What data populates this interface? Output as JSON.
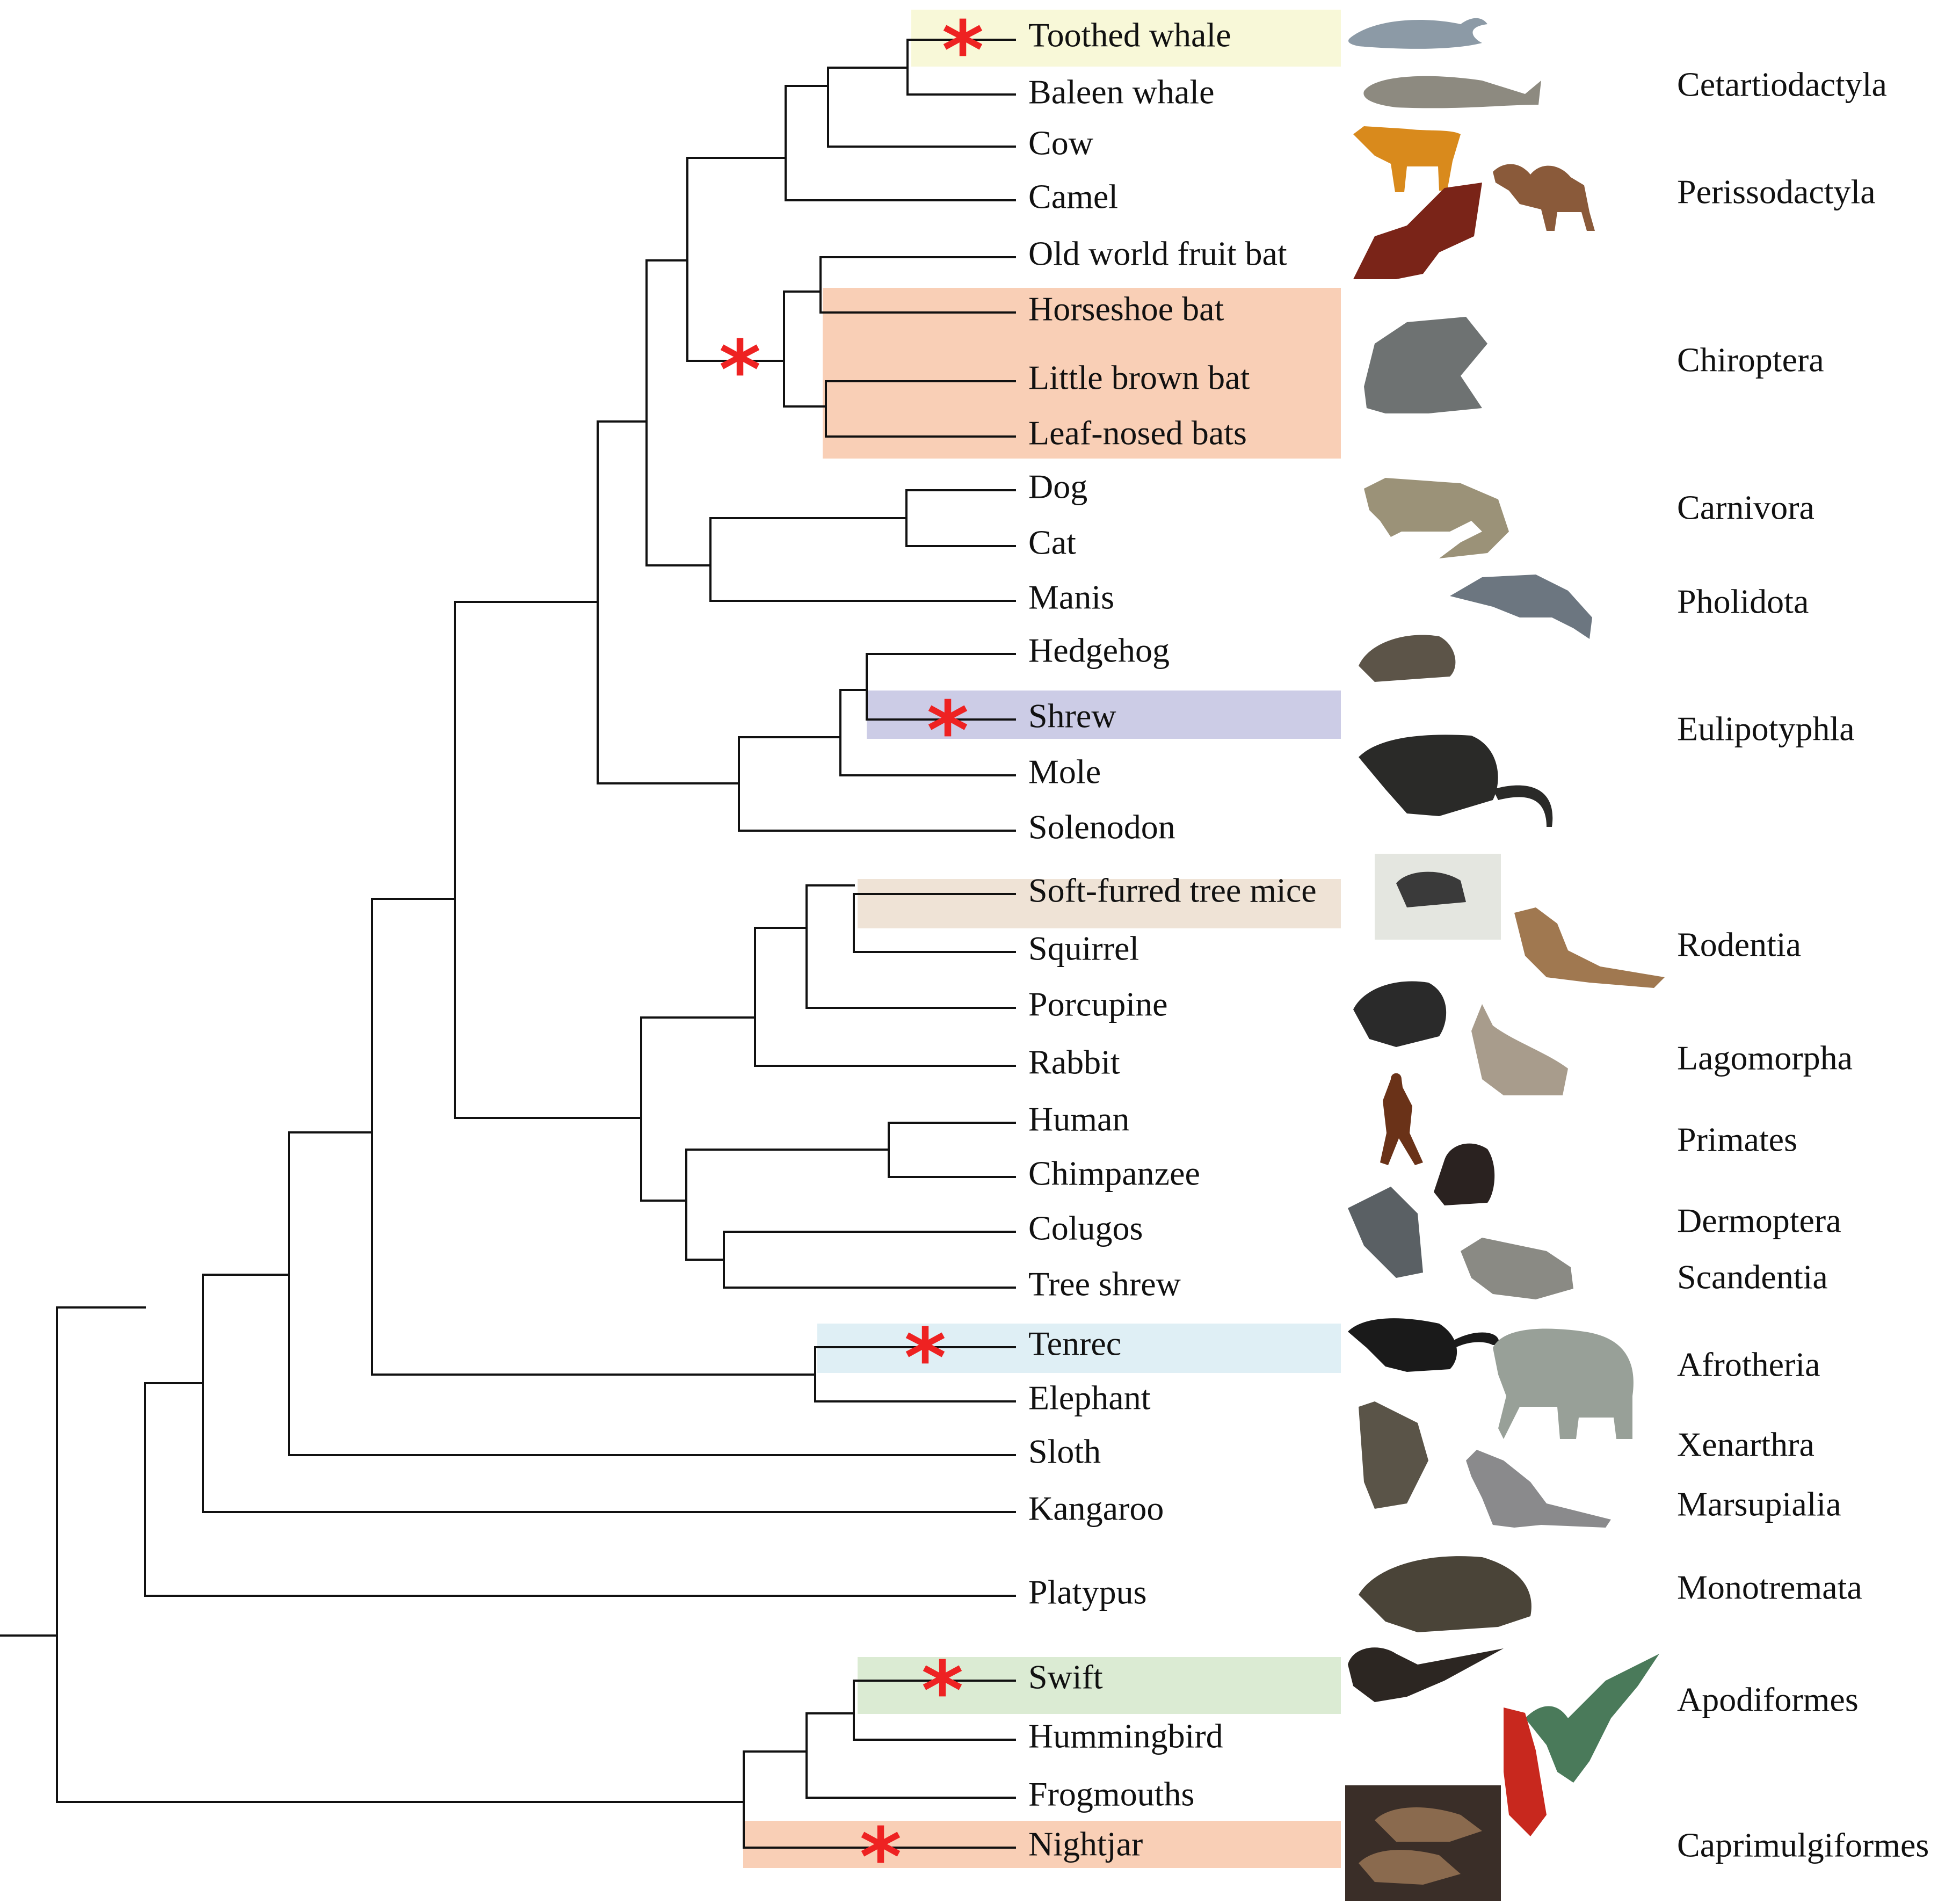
{
  "taxa": [
    "Toothed whale",
    "Baleen whale",
    "Cow",
    "Camel",
    "Old world fruit bat",
    "Horseshoe bat",
    "Little brown bat",
    "Leaf-nosed bats",
    "Dog",
    "Cat",
    "Manis",
    "Hedgehog",
    "Shrew",
    "Mole",
    "Solenodon",
    "Soft-furred tree mice",
    "Squirrel",
    "Porcupine",
    "Rabbit",
    "Human",
    "Chimpanzee",
    "Colugos",
    "Tree shrew",
    "Tenrec",
    "Elephant",
    "Sloth",
    "Kangaroo",
    "Platypus",
    "Swift",
    "Hummingbird",
    "Frogmouths",
    "Nightjar"
  ],
  "orders": [
    "Cetartiodactyla",
    "Perissodactyla",
    "Chiroptera",
    "Carnivora",
    "Pholidota",
    "Eulipotyphla",
    "Rodentia",
    "Lagomorpha",
    "Primates",
    "Dermoptera",
    "Scandentia",
    "Afrotheria",
    "Xenarthra",
    "Marsupialia",
    "Monotremata",
    "Apodiformes",
    "Caprimulgiformes"
  ],
  "highlighted_clades": [
    {
      "taxa": [
        "Toothed whale"
      ],
      "color": "#f8f8d8"
    },
    {
      "taxa": [
        "Horseshoe bat",
        "Little brown bat",
        "Leaf-nosed bats"
      ],
      "color": "#f9cfb6"
    },
    {
      "taxa": [
        "Shrew"
      ],
      "color": "#cccce6"
    },
    {
      "taxa": [
        "Soft-furred tree mice"
      ],
      "color": "#efe3d6"
    },
    {
      "taxa": [
        "Tenrec"
      ],
      "color": "#dfeff5"
    },
    {
      "taxa": [
        "Swift"
      ],
      "color": "#dbebd3"
    },
    {
      "taxa": [
        "Nightjar"
      ],
      "color": "#f9cfb6"
    }
  ],
  "marker_symbol": "*",
  "marker_color": "#ee2222",
  "animal_icons": [
    "dolphin-icon",
    "whale-icon",
    "cow-icon",
    "camel-icon",
    "fruit-bat-icon",
    "bat-icon",
    "civet-icon",
    "pangolin-icon",
    "hedgehog-icon",
    "shrew-icon",
    "mouse-icon",
    "chipmunk-icon",
    "porcupine-icon",
    "rabbit-icon",
    "human-icon",
    "chimpanzee-icon",
    "colugo-icon",
    "tree-shrew-icon",
    "tenrec-icon",
    "elephant-icon",
    "sloth-icon",
    "kangaroo-icon",
    "echidna-icon",
    "swift-icon",
    "hummingbird-icon",
    "nightjar-icon"
  ]
}
